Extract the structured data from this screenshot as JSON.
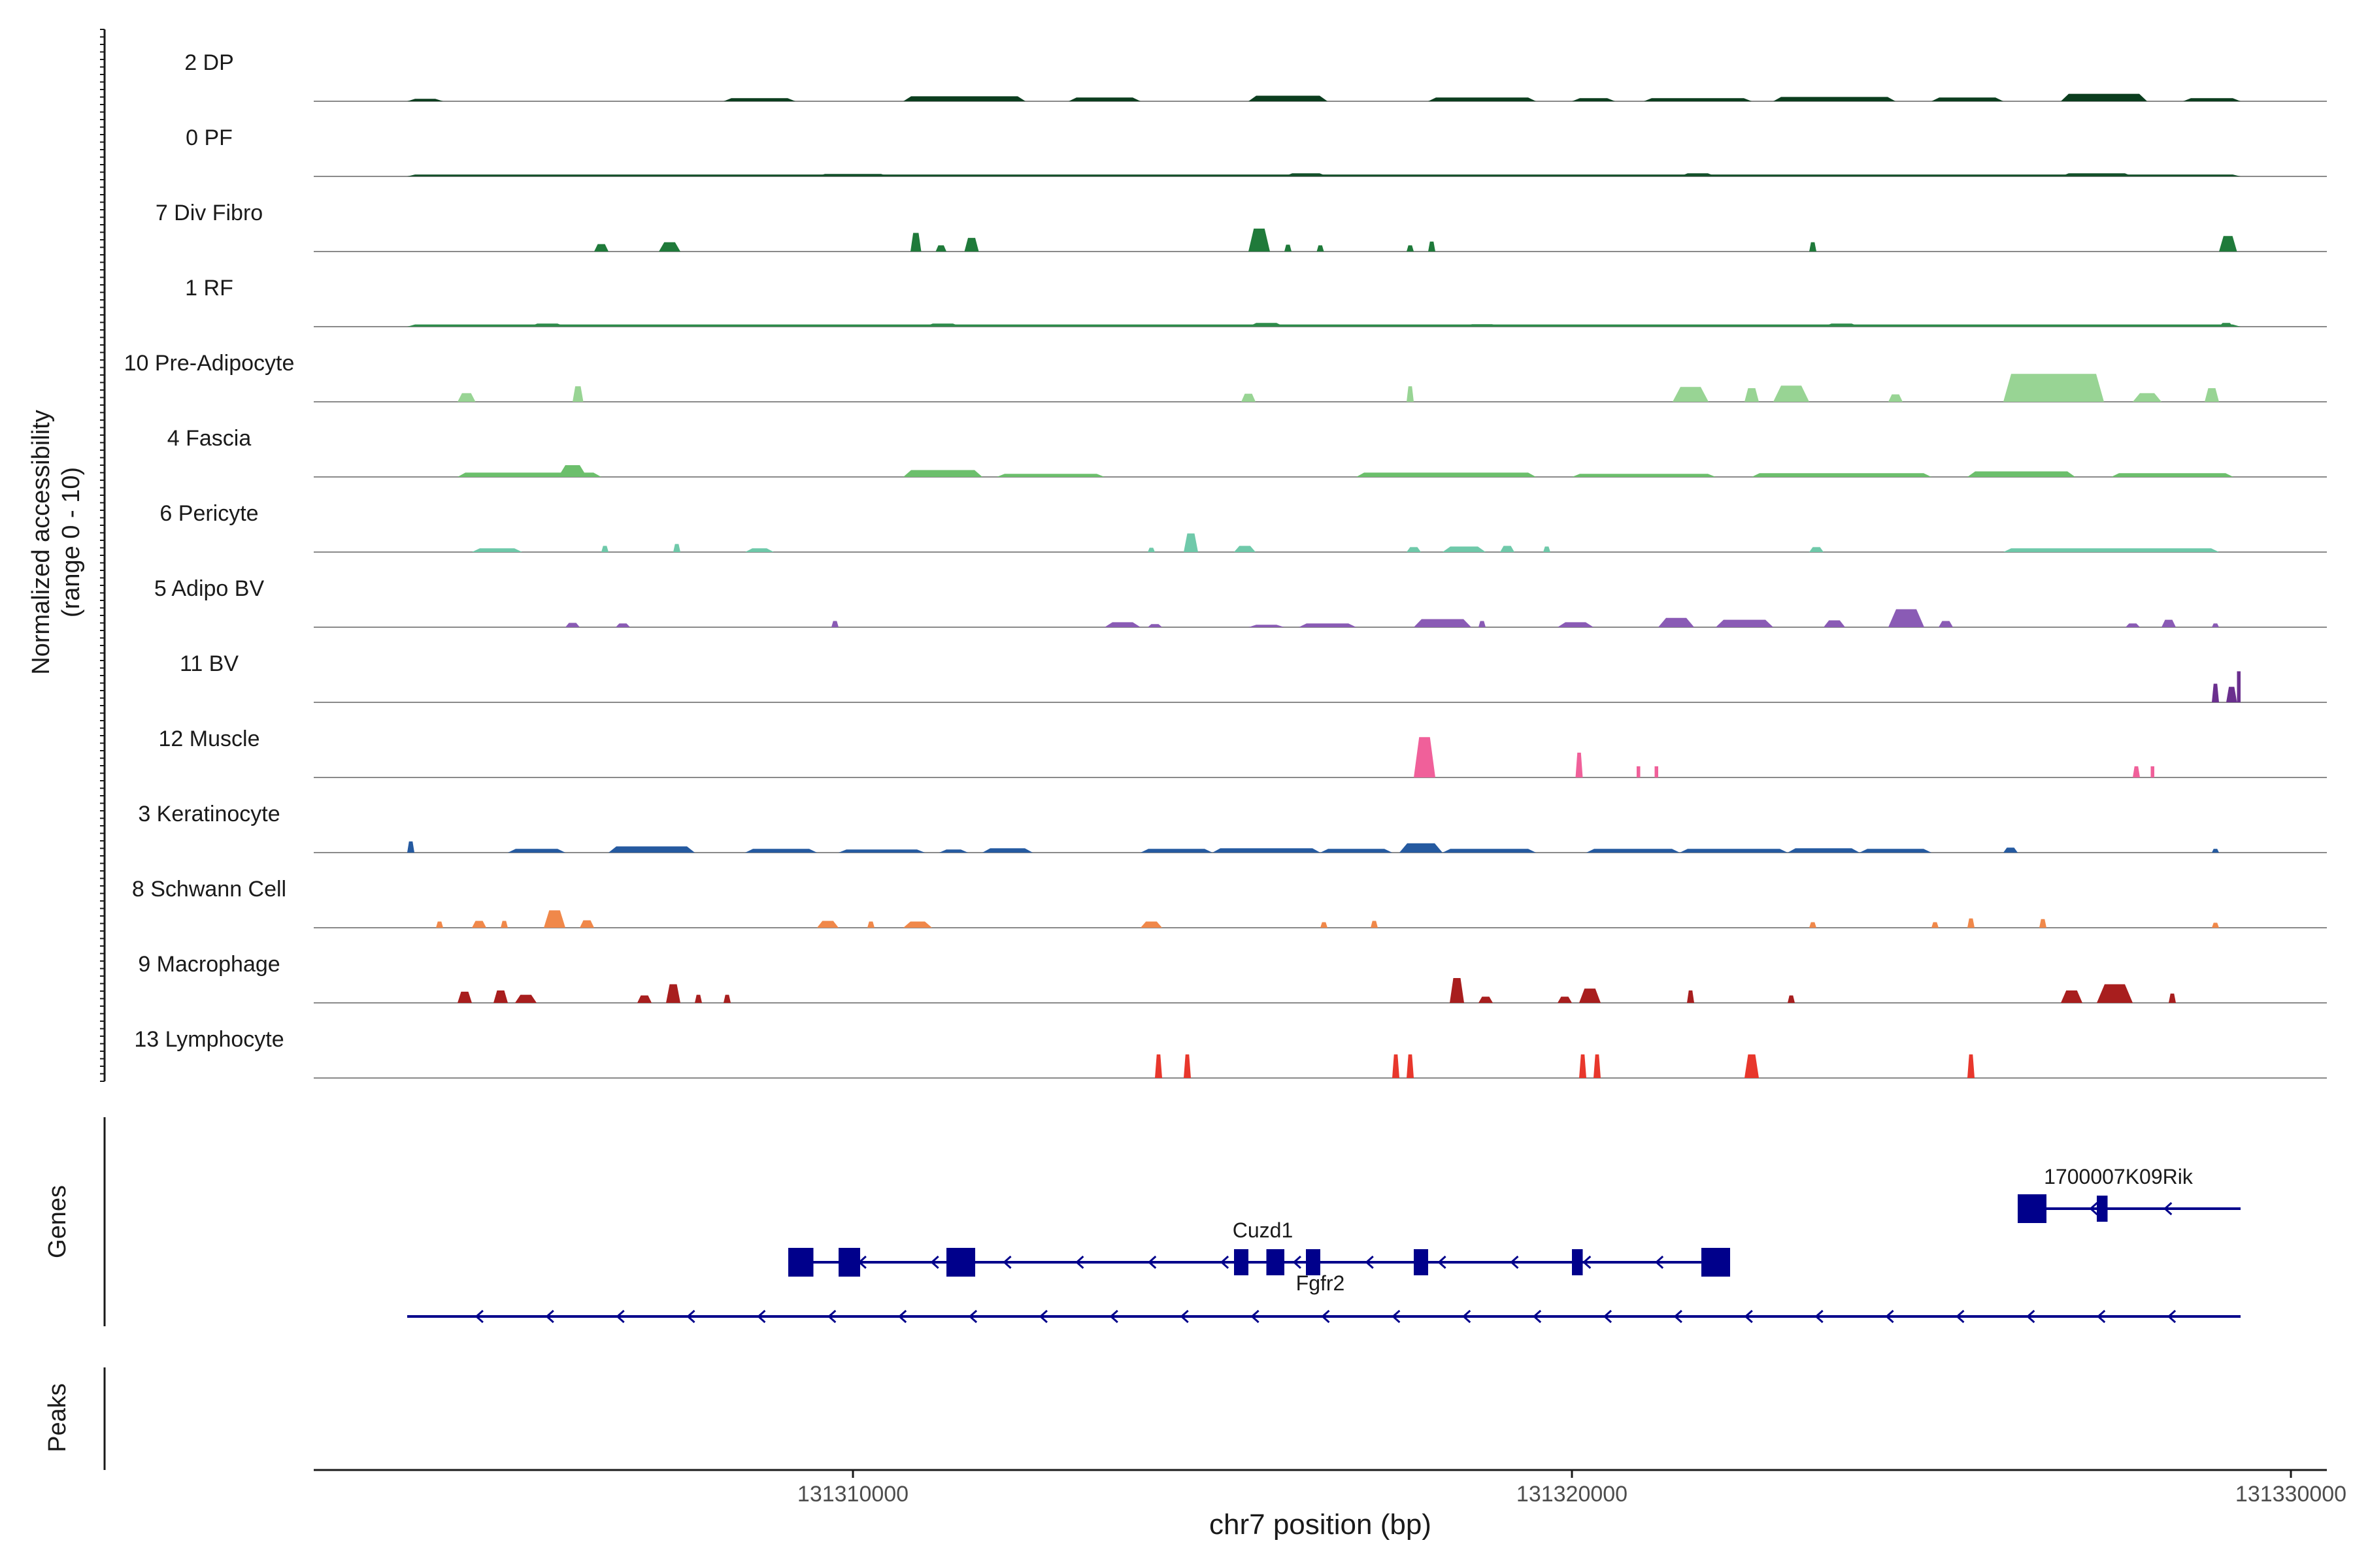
{
  "chart_data": {
    "type": "genome-browser-coverage",
    "y_axis_label_line1": "Normalized accessibility",
    "y_axis_label_line2": "(range 0 - 10)",
    "y_range": [
      0,
      10
    ],
    "genes_label": "Genes",
    "peaks_label": "Peaks",
    "xlabel": "chr7 position (bp)",
    "xlim": [
      131302500,
      131330500
    ],
    "ticks": [
      {
        "value": 131310000,
        "label": "131310000"
      },
      {
        "value": 131320000,
        "label": "131320000"
      },
      {
        "value": 131330000,
        "label": "131330000"
      }
    ],
    "tracks": [
      {
        "name": "2 DP",
        "color": "#0b3d1e",
        "peaks": [
          [
            131303800,
            131304300,
            0.4
          ],
          [
            131308200,
            131309200,
            0.5
          ],
          [
            131310700,
            131312400,
            0.8
          ],
          [
            131313000,
            131314000,
            0.6
          ],
          [
            131315500,
            131316600,
            0.9
          ],
          [
            131318000,
            131319500,
            0.6
          ],
          [
            131320000,
            131320600,
            0.5
          ],
          [
            131321000,
            131322500,
            0.5
          ],
          [
            131322800,
            131324500,
            0.7
          ],
          [
            131325000,
            131326000,
            0.6
          ],
          [
            131326800,
            131328000,
            1.2
          ],
          [
            131328500,
            131329300,
            0.5
          ]
        ]
      },
      {
        "name": "0 PF",
        "color": "#14502a",
        "peaks": [
          [
            131303800,
            131329300,
            0.3
          ],
          [
            131309500,
            131310500,
            0.4
          ],
          [
            131316000,
            131316600,
            0.5
          ],
          [
            131321500,
            131322000,
            0.5
          ],
          [
            131326800,
            131327800,
            0.5
          ]
        ]
      },
      {
        "name": "7 Div Fibro",
        "color": "#1f7a3a",
        "peaks": [
          [
            131306400,
            131306600,
            1.2
          ],
          [
            131307300,
            131307600,
            1.5
          ],
          [
            131310800,
            131310950,
            3.0
          ],
          [
            131311150,
            131311300,
            1.0
          ],
          [
            131311550,
            131311750,
            2.2
          ],
          [
            131315500,
            131315800,
            3.7
          ],
          [
            131316000,
            131316100,
            1.1
          ],
          [
            131316450,
            131316550,
            1.0
          ],
          [
            131317700,
            131317800,
            1.0
          ],
          [
            131318000,
            131318100,
            1.6
          ],
          [
            131323300,
            131323400,
            1.5
          ],
          [
            131329000,
            131329250,
            2.5
          ]
        ]
      },
      {
        "name": "1 RF",
        "color": "#2e8b4a",
        "peaks": [
          [
            131303800,
            131329300,
            0.35
          ],
          [
            131305500,
            131306000,
            0.5
          ],
          [
            131311000,
            131311500,
            0.5
          ],
          [
            131315500,
            131316000,
            0.6
          ],
          [
            131318500,
            131319000,
            0.4
          ],
          [
            131323500,
            131324000,
            0.5
          ],
          [
            131329000,
            131329200,
            0.6
          ]
        ]
      },
      {
        "name": "10 Pre-Adipocyte",
        "color": "#98d494",
        "peaks": [
          [
            131304500,
            131304750,
            1.4
          ],
          [
            131306100,
            131306250,
            2.5
          ],
          [
            131315400,
            131315600,
            1.3
          ],
          [
            131317700,
            131317800,
            2.5
          ],
          [
            131321400,
            131321900,
            2.4
          ],
          [
            131322400,
            131322600,
            2.2
          ],
          [
            131322800,
            131323300,
            2.6
          ],
          [
            131324400,
            131324600,
            1.2
          ],
          [
            131326000,
            131327400,
            4.5
          ],
          [
            131327800,
            131328200,
            1.4
          ],
          [
            131328800,
            131329000,
            2.2
          ]
        ]
      },
      {
        "name": "4 Fascia",
        "color": "#6cbf6c",
        "peaks": [
          [
            131304500,
            131306500,
            0.7
          ],
          [
            131305900,
            131306300,
            1.9
          ],
          [
            131310700,
            131311800,
            1.1
          ],
          [
            131312000,
            131313500,
            0.5
          ],
          [
            131317000,
            131319500,
            0.7
          ],
          [
            131320000,
            131322000,
            0.5
          ],
          [
            131322500,
            131325000,
            0.6
          ],
          [
            131325500,
            131327000,
            0.9
          ],
          [
            131327500,
            131329200,
            0.6
          ]
        ]
      },
      {
        "name": "6 Pericyte",
        "color": "#6fc9aa",
        "peaks": [
          [
            131304700,
            131305400,
            0.6
          ],
          [
            131306500,
            131306600,
            1.0
          ],
          [
            131307500,
            131307600,
            1.3
          ],
          [
            131308500,
            131308900,
            0.6
          ],
          [
            131314100,
            131314200,
            0.7
          ],
          [
            131314600,
            131314800,
            3.0
          ],
          [
            131315300,
            131315600,
            1.0
          ],
          [
            131317700,
            131317900,
            0.8
          ],
          [
            131318200,
            131318800,
            0.9
          ],
          [
            131319000,
            131319200,
            1.0
          ],
          [
            131319600,
            131319700,
            0.9
          ],
          [
            131323300,
            131323500,
            0.8
          ],
          [
            131326000,
            131329000,
            0.6
          ]
        ]
      },
      {
        "name": "5 Adipo BV",
        "color": "#8a5bb5",
        "peaks": [
          [
            131306000,
            131306200,
            0.7
          ],
          [
            131306700,
            131306900,
            0.6
          ],
          [
            131309700,
            131309800,
            1.0
          ],
          [
            131313500,
            131314000,
            0.8
          ],
          [
            131314100,
            131314300,
            0.5
          ],
          [
            131315500,
            131316000,
            0.4
          ],
          [
            131316200,
            131317000,
            0.6
          ],
          [
            131317800,
            131318600,
            1.3
          ],
          [
            131318700,
            131318800,
            1.0
          ],
          [
            131319800,
            131320300,
            0.8
          ],
          [
            131321200,
            131321700,
            1.5
          ],
          [
            131322000,
            131322800,
            1.2
          ],
          [
            131323500,
            131323800,
            1.1
          ],
          [
            131324400,
            131324900,
            2.9
          ],
          [
            131325100,
            131325300,
            1.0
          ],
          [
            131327700,
            131327900,
            0.6
          ],
          [
            131328200,
            131328400,
            1.2
          ],
          [
            131328900,
            131329000,
            0.6
          ]
        ]
      },
      {
        "name": "11 BV",
        "color": "#6a2f8e",
        "peaks": [
          [
            131328900,
            131329000,
            3.0
          ],
          [
            131329100,
            131329250,
            2.5
          ],
          [
            131329250,
            131329300,
            5.0
          ]
        ]
      },
      {
        "name": "12 Muscle",
        "color": "#f0609a",
        "peaks": [
          [
            131317800,
            131318100,
            6.5
          ],
          [
            131320050,
            131320150,
            4.0
          ],
          [
            131320900,
            131320950,
            1.8
          ],
          [
            131321150,
            131321200,
            1.8
          ],
          [
            131327800,
            131327900,
            1.8
          ],
          [
            131328050,
            131328100,
            1.8
          ]
        ]
      },
      {
        "name": "3 Keratinocyte",
        "color": "#255aa0",
        "peaks": [
          [
            131303800,
            131303900,
            1.8
          ],
          [
            131305200,
            131306000,
            0.6
          ],
          [
            131306600,
            131307800,
            1.0
          ],
          [
            131308500,
            131309500,
            0.6
          ],
          [
            131309800,
            131311000,
            0.5
          ],
          [
            131311200,
            131311600,
            0.5
          ],
          [
            131311800,
            131312500,
            0.7
          ],
          [
            131314000,
            131315000,
            0.6
          ],
          [
            131315000,
            131316500,
            0.7
          ],
          [
            131316500,
            131317500,
            0.6
          ],
          [
            131317600,
            131318200,
            1.5
          ],
          [
            131318200,
            131319500,
            0.6
          ],
          [
            131320200,
            131321500,
            0.6
          ],
          [
            131321500,
            131323000,
            0.6
          ],
          [
            131323000,
            131324000,
            0.7
          ],
          [
            131324000,
            131325000,
            0.6
          ],
          [
            131326000,
            131326200,
            0.8
          ],
          [
            131328900,
            131329000,
            0.6
          ]
        ]
      },
      {
        "name": "8 Schwann Cell",
        "color": "#f0884a",
        "peaks": [
          [
            131304200,
            131304300,
            1.0
          ],
          [
            131304700,
            131304900,
            1.1
          ],
          [
            131305100,
            131305200,
            1.1
          ],
          [
            131305700,
            131306000,
            2.8
          ],
          [
            131306200,
            131306400,
            1.2
          ],
          [
            131309500,
            131309800,
            1.1
          ],
          [
            131310200,
            131310300,
            1.0
          ],
          [
            131310700,
            131311100,
            1.0
          ],
          [
            131314000,
            131314300,
            1.0
          ],
          [
            131316500,
            131316600,
            0.9
          ],
          [
            131317200,
            131317300,
            1.1
          ],
          [
            131323300,
            131323400,
            0.9
          ],
          [
            131325000,
            131325100,
            0.9
          ],
          [
            131325500,
            131325600,
            1.5
          ],
          [
            131326500,
            131326600,
            1.4
          ],
          [
            131328900,
            131329000,
            0.8
          ]
        ]
      },
      {
        "name": "9 Macrophage",
        "color": "#a81e1e",
        "peaks": [
          [
            131304500,
            131304700,
            1.8
          ],
          [
            131305000,
            131305200,
            2.0
          ],
          [
            131305300,
            131305600,
            1.3
          ],
          [
            131307000,
            131307200,
            1.2
          ],
          [
            131307400,
            131307600,
            3.0
          ],
          [
            131307800,
            131307900,
            1.3
          ],
          [
            131308200,
            131308300,
            1.3
          ],
          [
            131318300,
            131318500,
            4.0
          ],
          [
            131318700,
            131318900,
            1.0
          ],
          [
            131319800,
            131320000,
            1.0
          ],
          [
            131320100,
            131320400,
            2.3
          ],
          [
            131321600,
            131321700,
            2.0
          ],
          [
            131323000,
            131323100,
            1.2
          ],
          [
            131326800,
            131327100,
            2.0
          ],
          [
            131327300,
            131327800,
            3.0
          ],
          [
            131328300,
            131328400,
            1.5
          ]
        ]
      },
      {
        "name": "13 Lymphocyte",
        "color": "#e8372c",
        "peaks": [
          [
            131314200,
            131314300,
            3.8
          ],
          [
            131314600,
            131314700,
            3.8
          ],
          [
            131317500,
            131317600,
            3.8
          ],
          [
            131317700,
            131317800,
            3.8
          ],
          [
            131320100,
            131320200,
            3.8
          ],
          [
            131320300,
            131320400,
            3.8
          ],
          [
            131322400,
            131322600,
            3.8
          ],
          [
            131325500,
            131325600,
            3.8
          ]
        ]
      }
    ],
    "genes": [
      {
        "name": "1700007K09Rik",
        "start": 131326200,
        "end": 131329300,
        "strand": "-",
        "row": 0,
        "exons": [
          [
            131326200,
            131326600
          ],
          [
            131327300,
            131327450
          ]
        ],
        "label_pos": 131327600
      },
      {
        "name": "Cuzd1",
        "start": 131309100,
        "end": 131322200,
        "strand": "-",
        "row": 1,
        "exons": [
          [
            131309100,
            131309450
          ],
          [
            131309800,
            131310100
          ],
          [
            131311300,
            131311700
          ],
          [
            131315300,
            131315500
          ],
          [
            131315750,
            131316000
          ],
          [
            131316300,
            131316500
          ],
          [
            131317800,
            131318000
          ],
          [
            131320000,
            131320150
          ],
          [
            131321800,
            131322200
          ]
        ],
        "label_pos": 131315700
      },
      {
        "name": "Fgfr2",
        "start": 131303800,
        "end": 131329300,
        "strand": "-",
        "row": 2,
        "exons": [],
        "label_pos": 131316500
      }
    ]
  }
}
